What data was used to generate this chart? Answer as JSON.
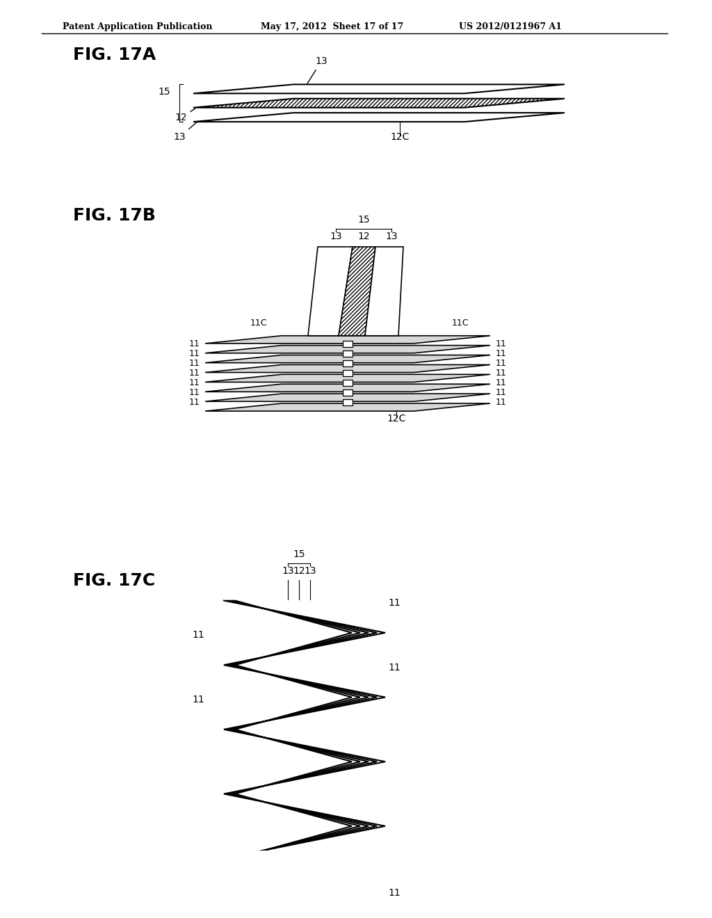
{
  "header_left": "Patent Application Publication",
  "header_mid": "May 17, 2012  Sheet 17 of 17",
  "header_right": "US 2012/0121967 A1",
  "fig17a_label": "FIG. 17A",
  "fig17b_label": "FIG. 17B",
  "fig17c_label": "FIG. 17C",
  "bg_color": "#ffffff",
  "line_color": "#000000",
  "light_gray": "#d8d8d8"
}
